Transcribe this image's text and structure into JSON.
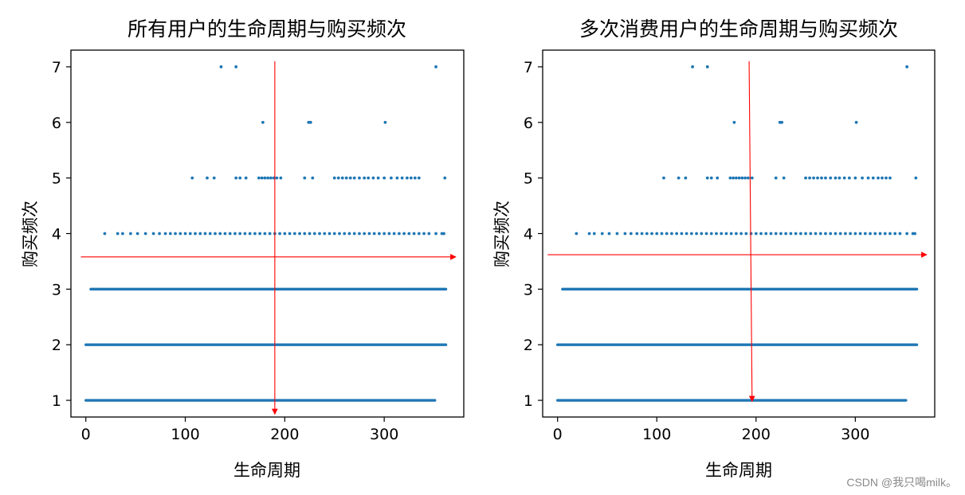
{
  "charts": [
    {
      "title": "所有用户的生命周期与购买频次",
      "xlabel": "生命周期",
      "ylabel": "购买频次"
    },
    {
      "title": "多次消费用户的生命周期与购买频次",
      "xlabel": "生命周期",
      "ylabel": "购买频次"
    }
  ],
  "watermark": "CSDN @我只喝milk。",
  "colors": {
    "points": "#1f77b4",
    "arrows": "#ff0000",
    "axes": "#000000"
  },
  "chart_data": [
    {
      "type": "scatter",
      "title": "所有用户的生命周期与购买频次",
      "xlabel": "生命周期",
      "ylabel": "购买频次",
      "xlim": [
        -15,
        380
      ],
      "ylim": [
        0.7,
        7.3
      ],
      "xticks": [
        0,
        100,
        200,
        300
      ],
      "yticks": [
        1,
        2,
        3,
        4,
        5,
        6,
        7
      ],
      "grid": false,
      "bands": [
        {
          "y": 1,
          "x_range": [
            0,
            351
          ]
        },
        {
          "y": 2,
          "x_range": [
            0,
            362
          ]
        },
        {
          "y": 3,
          "x_range": [
            5,
            362
          ]
        }
      ],
      "points": [
        [
          19,
          4
        ],
        [
          32,
          4
        ],
        [
          37,
          4
        ],
        [
          45,
          4
        ],
        [
          52,
          4
        ],
        [
          60,
          4
        ],
        [
          68,
          4
        ],
        [
          74,
          4
        ],
        [
          80,
          4
        ],
        [
          85,
          4
        ],
        [
          90,
          4
        ],
        [
          95,
          4
        ],
        [
          100,
          4
        ],
        [
          105,
          4
        ],
        [
          110,
          4
        ],
        [
          115,
          4
        ],
        [
          120,
          4
        ],
        [
          125,
          4
        ],
        [
          130,
          4
        ],
        [
          135,
          4
        ],
        [
          140,
          4
        ],
        [
          145,
          4
        ],
        [
          150,
          4
        ],
        [
          155,
          4
        ],
        [
          160,
          4
        ],
        [
          165,
          4
        ],
        [
          170,
          4
        ],
        [
          175,
          4
        ],
        [
          180,
          4
        ],
        [
          185,
          4
        ],
        [
          190,
          4
        ],
        [
          195,
          4
        ],
        [
          200,
          4
        ],
        [
          205,
          4
        ],
        [
          210,
          4
        ],
        [
          215,
          4
        ],
        [
          220,
          4
        ],
        [
          225,
          4
        ],
        [
          230,
          4
        ],
        [
          235,
          4
        ],
        [
          240,
          4
        ],
        [
          245,
          4
        ],
        [
          250,
          4
        ],
        [
          255,
          4
        ],
        [
          260,
          4
        ],
        [
          265,
          4
        ],
        [
          270,
          4
        ],
        [
          275,
          4
        ],
        [
          280,
          4
        ],
        [
          285,
          4
        ],
        [
          290,
          4
        ],
        [
          295,
          4
        ],
        [
          300,
          4
        ],
        [
          305,
          4
        ],
        [
          310,
          4
        ],
        [
          315,
          4
        ],
        [
          320,
          4
        ],
        [
          325,
          4
        ],
        [
          330,
          4
        ],
        [
          335,
          4
        ],
        [
          340,
          4
        ],
        [
          345,
          4
        ],
        [
          352,
          4
        ],
        [
          358,
          4
        ],
        [
          360,
          4
        ],
        [
          107,
          5
        ],
        [
          122,
          5
        ],
        [
          129,
          5
        ],
        [
          151,
          5
        ],
        [
          155,
          5
        ],
        [
          161,
          5
        ],
        [
          174,
          5
        ],
        [
          177,
          5
        ],
        [
          180,
          5
        ],
        [
          183,
          5
        ],
        [
          186,
          5
        ],
        [
          189,
          5
        ],
        [
          192,
          5
        ],
        [
          196,
          5
        ],
        [
          220,
          5
        ],
        [
          228,
          5
        ],
        [
          250,
          5
        ],
        [
          254,
          5
        ],
        [
          258,
          5
        ],
        [
          262,
          5
        ],
        [
          266,
          5
        ],
        [
          270,
          5
        ],
        [
          275,
          5
        ],
        [
          280,
          5
        ],
        [
          284,
          5
        ],
        [
          289,
          5
        ],
        [
          294,
          5
        ],
        [
          300,
          5
        ],
        [
          307,
          5
        ],
        [
          313,
          5
        ],
        [
          318,
          5
        ],
        [
          323,
          5
        ],
        [
          327,
          5
        ],
        [
          331,
          5
        ],
        [
          335,
          5
        ],
        [
          361,
          5
        ],
        [
          178,
          6
        ],
        [
          224,
          6
        ],
        [
          226,
          6
        ],
        [
          301,
          6
        ],
        [
          136,
          7
        ],
        [
          151,
          7
        ],
        [
          352,
          7
        ]
      ],
      "annotations": [
        {
          "type": "arrow",
          "from": [
            190,
            7.1
          ],
          "to": [
            190,
            0.75
          ]
        },
        {
          "type": "arrow",
          "from": [
            -5,
            3.58
          ],
          "to": [
            372,
            3.58
          ]
        }
      ]
    },
    {
      "type": "scatter",
      "title": "多次消费用户的生命周期与购买频次",
      "xlabel": "生命周期",
      "ylabel": "购买频次",
      "xlim": [
        -15,
        380
      ],
      "ylim": [
        0.7,
        7.3
      ],
      "xticks": [
        0,
        100,
        200,
        300
      ],
      "yticks": [
        1,
        2,
        3,
        4,
        5,
        6,
        7
      ],
      "grid": false,
      "bands": [
        {
          "y": 1,
          "x_range": [
            0,
            351
          ]
        },
        {
          "y": 2,
          "x_range": [
            0,
            362
          ]
        },
        {
          "y": 3,
          "x_range": [
            5,
            362
          ]
        }
      ],
      "points": [
        [
          19,
          4
        ],
        [
          32,
          4
        ],
        [
          37,
          4
        ],
        [
          45,
          4
        ],
        [
          52,
          4
        ],
        [
          60,
          4
        ],
        [
          68,
          4
        ],
        [
          74,
          4
        ],
        [
          80,
          4
        ],
        [
          85,
          4
        ],
        [
          90,
          4
        ],
        [
          95,
          4
        ],
        [
          100,
          4
        ],
        [
          105,
          4
        ],
        [
          110,
          4
        ],
        [
          115,
          4
        ],
        [
          120,
          4
        ],
        [
          125,
          4
        ],
        [
          130,
          4
        ],
        [
          135,
          4
        ],
        [
          140,
          4
        ],
        [
          145,
          4
        ],
        [
          150,
          4
        ],
        [
          155,
          4
        ],
        [
          160,
          4
        ],
        [
          165,
          4
        ],
        [
          170,
          4
        ],
        [
          175,
          4
        ],
        [
          180,
          4
        ],
        [
          185,
          4
        ],
        [
          190,
          4
        ],
        [
          195,
          4
        ],
        [
          200,
          4
        ],
        [
          205,
          4
        ],
        [
          210,
          4
        ],
        [
          215,
          4
        ],
        [
          220,
          4
        ],
        [
          225,
          4
        ],
        [
          230,
          4
        ],
        [
          235,
          4
        ],
        [
          240,
          4
        ],
        [
          245,
          4
        ],
        [
          250,
          4
        ],
        [
          255,
          4
        ],
        [
          260,
          4
        ],
        [
          265,
          4
        ],
        [
          270,
          4
        ],
        [
          275,
          4
        ],
        [
          280,
          4
        ],
        [
          285,
          4
        ],
        [
          290,
          4
        ],
        [
          295,
          4
        ],
        [
          300,
          4
        ],
        [
          305,
          4
        ],
        [
          310,
          4
        ],
        [
          315,
          4
        ],
        [
          320,
          4
        ],
        [
          325,
          4
        ],
        [
          330,
          4
        ],
        [
          335,
          4
        ],
        [
          340,
          4
        ],
        [
          345,
          4
        ],
        [
          352,
          4
        ],
        [
          358,
          4
        ],
        [
          360,
          4
        ],
        [
          107,
          5
        ],
        [
          122,
          5
        ],
        [
          129,
          5
        ],
        [
          151,
          5
        ],
        [
          155,
          5
        ],
        [
          161,
          5
        ],
        [
          174,
          5
        ],
        [
          177,
          5
        ],
        [
          180,
          5
        ],
        [
          183,
          5
        ],
        [
          186,
          5
        ],
        [
          189,
          5
        ],
        [
          192,
          5
        ],
        [
          196,
          5
        ],
        [
          220,
          5
        ],
        [
          228,
          5
        ],
        [
          250,
          5
        ],
        [
          254,
          5
        ],
        [
          258,
          5
        ],
        [
          262,
          5
        ],
        [
          266,
          5
        ],
        [
          270,
          5
        ],
        [
          275,
          5
        ],
        [
          280,
          5
        ],
        [
          284,
          5
        ],
        [
          289,
          5
        ],
        [
          294,
          5
        ],
        [
          300,
          5
        ],
        [
          307,
          5
        ],
        [
          313,
          5
        ],
        [
          318,
          5
        ],
        [
          323,
          5
        ],
        [
          327,
          5
        ],
        [
          331,
          5
        ],
        [
          335,
          5
        ],
        [
          361,
          5
        ],
        [
          178,
          6
        ],
        [
          224,
          6
        ],
        [
          226,
          6
        ],
        [
          301,
          6
        ],
        [
          136,
          7
        ],
        [
          151,
          7
        ],
        [
          352,
          7
        ]
      ],
      "annotations": [
        {
          "type": "arrow",
          "from": [
            193,
            7.1
          ],
          "to": [
            196,
            0.98
          ]
        },
        {
          "type": "arrow",
          "from": [
            -10,
            3.62
          ],
          "to": [
            372,
            3.62
          ]
        }
      ]
    }
  ]
}
